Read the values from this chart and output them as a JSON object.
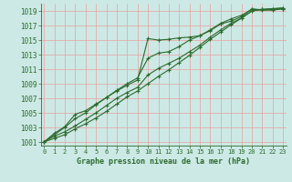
{
  "xlabel": "Graphe pression niveau de la mer (hPa)",
  "ylim": [
    1000.5,
    1020.0
  ],
  "xlim": [
    -0.3,
    23.3
  ],
  "yticks": [
    1001,
    1003,
    1005,
    1007,
    1009,
    1011,
    1013,
    1015,
    1017,
    1019
  ],
  "xticks": [
    0,
    1,
    2,
    3,
    4,
    5,
    6,
    7,
    8,
    9,
    10,
    11,
    12,
    13,
    14,
    15,
    16,
    17,
    18,
    19,
    20,
    21,
    22,
    23
  ],
  "bg_color": "#cce9e5",
  "grid_color": "#e8a0a0",
  "line_color": "#2d6a2d",
  "series": [
    [
      1001.0,
      1002.2,
      1003.1,
      1004.8,
      1005.3,
      1006.2,
      1007.1,
      1008.0,
      1008.8,
      1009.5,
      1015.2,
      1015.0,
      1015.1,
      1015.3,
      1015.4,
      1015.6,
      1016.3,
      1017.2,
      1017.6,
      1018.2,
      1019.3,
      1019.1,
      1019.1,
      1019.3
    ],
    [
      1001.0,
      1002.0,
      1003.0,
      1004.2,
      1005.0,
      1006.1,
      1007.1,
      1008.1,
      1009.0,
      1009.8,
      1012.5,
      1013.2,
      1013.4,
      1014.1,
      1015.0,
      1015.6,
      1016.4,
      1017.3,
      1017.9,
      1018.4,
      1019.2,
      1019.2,
      1019.2,
      1019.3
    ],
    [
      1001.0,
      1001.8,
      1002.4,
      1003.2,
      1004.1,
      1005.0,
      1006.0,
      1007.0,
      1007.8,
      1008.5,
      1010.2,
      1011.1,
      1011.8,
      1012.5,
      1013.4,
      1014.3,
      1015.4,
      1016.4,
      1017.3,
      1018.0,
      1019.0,
      1019.2,
      1019.3,
      1019.4
    ],
    [
      1001.0,
      1001.5,
      1002.0,
      1002.8,
      1003.5,
      1004.3,
      1005.2,
      1006.2,
      1007.2,
      1008.0,
      1009.0,
      1010.0,
      1010.9,
      1011.9,
      1012.9,
      1014.0,
      1015.1,
      1016.1,
      1017.1,
      1018.0,
      1019.0,
      1019.2,
      1019.3,
      1019.4
    ]
  ]
}
